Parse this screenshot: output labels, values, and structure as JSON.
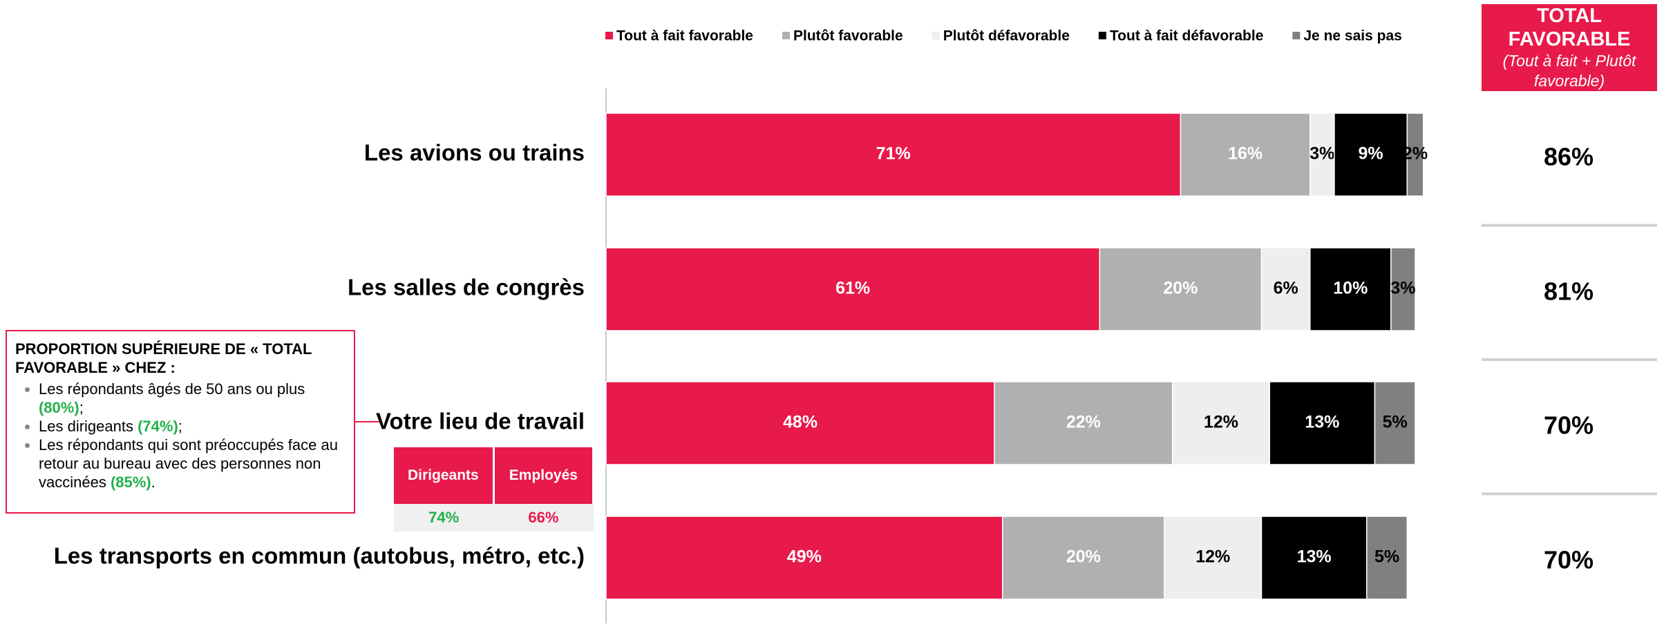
{
  "chart_data": {
    "type": "stacked_barh",
    "categories": [
      "Les avions ou trains",
      "Les salles de congrès",
      "Votre lieu de travail",
      "Les transports en commun (autobus, métro, etc.)"
    ],
    "xlim": [
      0,
      100
    ],
    "series": [
      {
        "name": "Tout à fait favorable",
        "color": "#e8194b",
        "label_color": "#ffffff",
        "values": [
          71,
          61,
          48,
          49
        ],
        "value_labels": [
          "71%",
          "61%",
          "48%",
          "49%"
        ]
      },
      {
        "name": "Plutôt favorable",
        "color": "#b0b0b0",
        "label_color": "#ffffff",
        "values": [
          16,
          20,
          22,
          20
        ],
        "value_labels": [
          "16%",
          "20%",
          "22%",
          "20%"
        ]
      },
      {
        "name": "Plutôt défavorable",
        "color": "#eeeeee",
        "label_color": "#000000",
        "values": [
          3,
          6,
          12,
          12
        ],
        "value_labels": [
          "3%",
          "6%",
          "12%",
          "12%"
        ]
      },
      {
        "name": "Tout à fait défavorable",
        "color": "#000000",
        "label_color": "#ffffff",
        "values": [
          9,
          10,
          13,
          13
        ],
        "value_labels": [
          "9%",
          "10%",
          "13%",
          "13%"
        ]
      },
      {
        "name": "Je ne sais pas",
        "color": "#808080",
        "label_color": "#000000",
        "values": [
          2,
          3,
          5,
          5
        ],
        "value_labels": [
          "2%",
          "3%",
          "5%",
          "5%"
        ]
      }
    ],
    "totals": {
      "title": "TOTAL FAVORABLE",
      "subtitle": "(Tout à fait + Plutôt favorable)",
      "values": [
        86,
        81,
        70,
        70
      ],
      "value_labels": [
        "86%",
        "81%",
        "70%",
        "70%"
      ]
    }
  },
  "callout": {
    "title": "PROPORTION SUPÉRIEURE DE « TOTAL FAVORABLE » CHEZ :",
    "items": [
      {
        "text": "Les répondants âgés de 50 ans ou plus",
        "highlight": "(80%)",
        "after": ";"
      },
      {
        "text": "Les dirigeants",
        "highlight": "(74%)",
        "after": ";"
      },
      {
        "text": "Les répondants qui sont préoccupés face au retour au bureau avec des personnes non vaccinées",
        "highlight": "(85%)",
        "after": "."
      }
    ]
  },
  "comparison": {
    "headers": [
      "Dirigeants",
      "Employés"
    ],
    "values": [
      "74%",
      "66%"
    ]
  }
}
